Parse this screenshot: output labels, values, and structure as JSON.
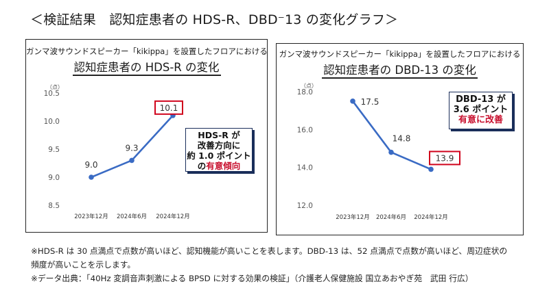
{
  "page_title": "＜検証結果　認知症患者の HDS-R、DBD⁻13 の変化グラフ＞",
  "panels": {
    "left": {
      "subtitle": "ガンマ波サウンドスピーカー「kikippa」を設置したフロアにおける",
      "title": "認知症患者の HDS-R の変化",
      "callout": {
        "line1": "HDS-R が",
        "line2": "改善方向に",
        "line3": "約 1.0 ポイント",
        "prefix": "の",
        "highlight": "有意傾向"
      }
    },
    "right": {
      "subtitle": "ガンマ波サウンドスピーカー「kikippa」を設置したフロアにおける",
      "title": "認知症患者の DBD-13 の変化",
      "callout": {
        "line1": "DBD-13 が",
        "line2": "3.6 ポイント",
        "highlight": "有意に改善"
      }
    }
  },
  "chart_data": [
    {
      "type": "line",
      "title": "認知症患者の HDS-R の変化",
      "unit": "（点）",
      "categories": [
        "2023年12月",
        "2024年6月",
        "2024年12月"
      ],
      "values": [
        9.0,
        9.3,
        10.1
      ],
      "labels": [
        "9.0",
        "9.3",
        "10.1"
      ],
      "highlight_index": 2,
      "ylim": [
        8.5,
        10.5
      ],
      "yticks": [
        "8.5",
        "9.0",
        "9.5",
        "10.0",
        "10.5"
      ],
      "grid": false,
      "color": "#3a6bc4",
      "highlight_color": "#d0021b"
    },
    {
      "type": "line",
      "title": "認知症患者の DBD-13 の変化",
      "unit": "（点）",
      "categories": [
        "2023年12月",
        "2024年6月",
        "2024年12月"
      ],
      "values": [
        17.5,
        14.8,
        13.9
      ],
      "labels": [
        "17.5",
        "14.8",
        "13.9"
      ],
      "highlight_index": 2,
      "ylim": [
        12.0,
        18.0
      ],
      "yticks": [
        "12.0",
        "14.0",
        "16.0",
        "18.0"
      ],
      "grid": false,
      "color": "#3a6bc4",
      "highlight_color": "#d0021b"
    }
  ],
  "notes": {
    "line1": "※HDS-R は 30 点満点で点数が高いほど、認知機能が高いことを表します。DBD-13 は、52 点満点で点数が高いほど、周辺症状の",
    "line2": "頻度が高いことを示します。",
    "line3": "※データ出典：「40Hz 変調音声刺激による BPSD に対する効果の検証」（介護老人保健施設 国立あおやぎ苑　武田 行広）"
  }
}
